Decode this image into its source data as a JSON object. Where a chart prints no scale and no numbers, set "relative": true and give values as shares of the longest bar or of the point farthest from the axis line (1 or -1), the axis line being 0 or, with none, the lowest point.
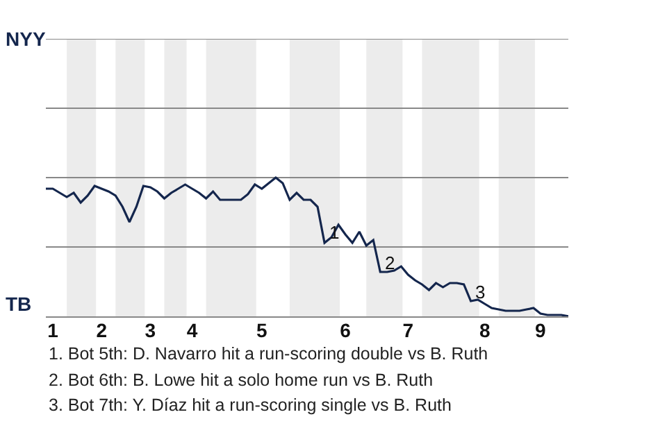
{
  "chart_data": {
    "type": "line",
    "relative": true,
    "categories": [
      null,
      "1",
      null,
      null,
      null,
      null,
      null,
      null,
      "2",
      null,
      null,
      null,
      null,
      null,
      null,
      "3",
      null,
      null,
      null,
      null,
      null,
      "4",
      null,
      null,
      null,
      null,
      null,
      null,
      null,
      null,
      null,
      "5",
      null,
      null,
      null,
      null,
      null,
      null,
      null,
      null,
      null,
      null,
      null,
      "6",
      null,
      null,
      null,
      null,
      null,
      null,
      null,
      null,
      "7",
      null,
      null,
      null,
      null,
      null,
      null,
      null,
      null,
      null,
      null,
      "8",
      null,
      null,
      null,
      null,
      null,
      null,
      null,
      "9",
      null,
      null,
      null,
      null
    ],
    "series": [
      {
        "color": "#14264d",
        "values": [
          0.92,
          0.92,
          0.89,
          0.86,
          0.89,
          0.82,
          0.87,
          0.94,
          0.92,
          0.9,
          0.87,
          0.79,
          0.68,
          0.79,
          0.94,
          0.93,
          0.9,
          0.85,
          0.89,
          0.92,
          0.95,
          0.92,
          0.89,
          0.85,
          0.9,
          0.84,
          0.84,
          0.84,
          0.84,
          0.88,
          0.95,
          0.92,
          0.96,
          1,
          0.96,
          0.84,
          0.89,
          0.84,
          0.84,
          0.79,
          0.53,
          0.57,
          0.66,
          0.59,
          0.53,
          0.61,
          0.51,
          0.55,
          0.32,
          0.32,
          0.33,
          0.36,
          0.3,
          0.26,
          0.23,
          0.19,
          0.24,
          0.21,
          0.24,
          0.24,
          0.23,
          0.11,
          0.12,
          0.09,
          0.06,
          0.05,
          0.04,
          0.04,
          0.04,
          0.05,
          0.06,
          0.02,
          0.01,
          0.01,
          0.01,
          0
        ]
      }
    ],
    "ref_lines": [
      {
        "axis": "y",
        "value": 0.5,
        "color": "#888888"
      },
      {
        "axis": "y",
        "value": 1,
        "color": "#888888"
      },
      {
        "axis": "y",
        "value": 1.5,
        "color": "#888888"
      },
      {
        "axis": "y",
        "value": 2,
        "color": "#888888"
      }
    ],
    "marker": "none",
    "line_style": "solid",
    "annotations": [
      "NYY",
      "TB",
      {
        "text": "1",
        "y": 0.55
      },
      {
        "text": "2",
        "y": 0.33
      },
      {
        "text": "3",
        "y": 0.12
      },
      "1. Bot 5th: D. Navarro hit a run-scoring double vs B. Ruth",
      "2. Bot 6th: B. Lowe hit a solo home run vs B. Ruth",
      "3. Bot 7th: Y. Díaz hit a run-scoring single vs B. Ruth"
    ]
  }
}
